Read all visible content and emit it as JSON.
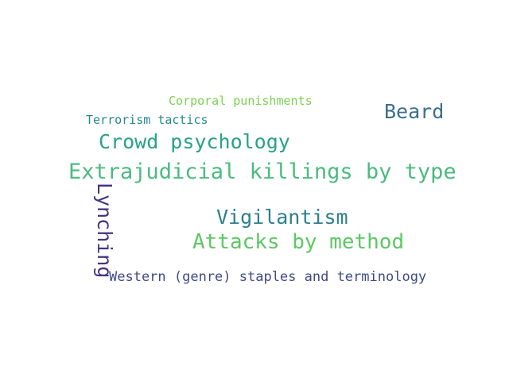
{
  "words": {
    "extrajudicial": {
      "text": "Extrajudicial killings by type",
      "color": "#4cbb7f"
    },
    "attacks": {
      "text": "Attacks by method",
      "color": "#5cc863"
    },
    "vigilantism": {
      "text": "Vigilantism",
      "color": "#2c7f8e"
    },
    "crowd": {
      "text": "Crowd psychology",
      "color": "#27a289"
    },
    "beard": {
      "text": "Beard",
      "color": "#3a6f8d"
    },
    "lynching": {
      "text": "Lynching",
      "color": "#453581"
    },
    "western": {
      "text": "Western (genre) staples and terminology",
      "color": "#3e4a89"
    },
    "terrorism": {
      "text": "Terrorism tactics",
      "color": "#23898e"
    },
    "corporal": {
      "text": "Corporal punishments",
      "color": "#7ad151"
    }
  }
}
